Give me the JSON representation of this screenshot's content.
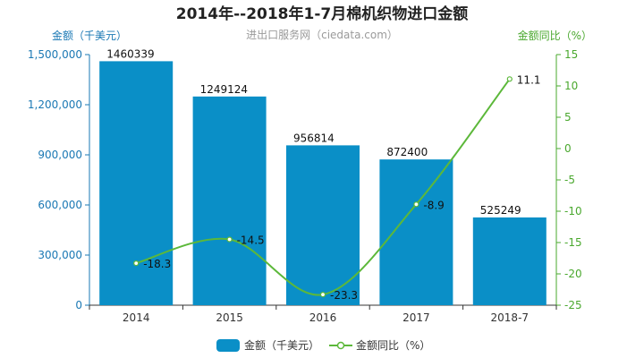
{
  "chart_data": {
    "type": "bar",
    "title": "2014年--2018年1-7月棉机织物进口金额",
    "subtitle": "进出口服务网（ciedata.com）",
    "categories": [
      "2014",
      "2015",
      "2016",
      "2017",
      "2018-7"
    ],
    "series": [
      {
        "name": "金额（千美元）",
        "type": "bar",
        "axis": "left",
        "color": "#0a8fc7",
        "values": [
          1460339,
          1249124,
          956814,
          872400,
          525249
        ],
        "labels": [
          "1460339",
          "1249124",
          "956814",
          "872400",
          "525249"
        ]
      },
      {
        "name": "金额同比（%）",
        "type": "line",
        "axis": "right",
        "color": "#5cb83a",
        "values": [
          -18.3,
          -14.5,
          -23.3,
          -8.9,
          11.1
        ],
        "labels": [
          "-18.3",
          "-14.5",
          "-23.3",
          "-8.9",
          "11.1"
        ]
      }
    ],
    "y_left": {
      "label": "金额（千美元）",
      "lim": [
        0,
        1500000
      ],
      "ticks": [
        0,
        300000,
        600000,
        900000,
        1200000,
        1500000
      ],
      "tick_labels": [
        "0",
        "300,000",
        "600,000",
        "900,000",
        "1,200,000",
        "1,500,000"
      ]
    },
    "y_right": {
      "label": "金额同比（%）",
      "lim": [
        -25,
        15
      ],
      "ticks": [
        -25,
        -20,
        -15,
        -10,
        -5,
        0,
        5,
        10,
        15
      ],
      "tick_labels": [
        "-25",
        "-20",
        "-15",
        "-10",
        "-5",
        "0",
        "5",
        "10",
        "15"
      ]
    },
    "legend": {
      "position": "bottom"
    },
    "grid": false
  }
}
